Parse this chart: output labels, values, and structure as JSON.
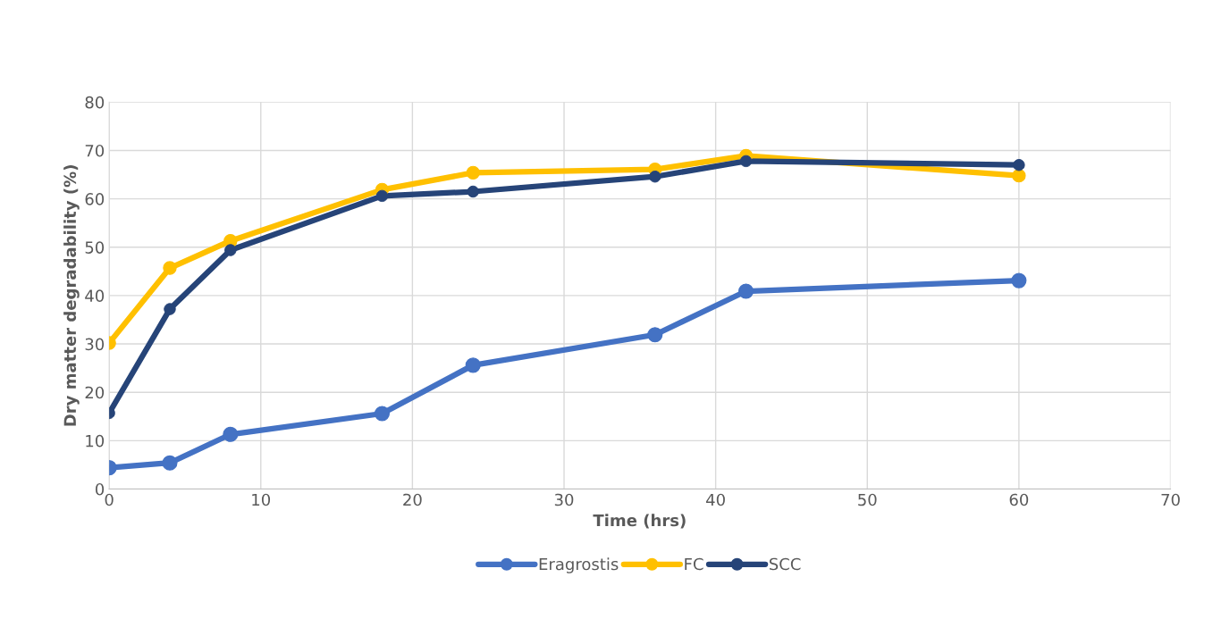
{
  "chart_data": {
    "type": "line",
    "xlabel": "Time (hrs)",
    "ylabel": "Dry matter degradability (%)",
    "x": [
      0,
      4,
      8,
      18,
      24,
      36,
      42,
      60
    ],
    "series": [
      {
        "name": "Eragrostis",
        "color": "#4472c4",
        "values": [
          4.4,
          5.4,
          11.3,
          15.6,
          25.6,
          31.9,
          40.9,
          43.1
        ]
      },
      {
        "name": "FC",
        "color": "#ffc000",
        "values": [
          30.2,
          45.7,
          51.3,
          61.9,
          65.4,
          66.1,
          68.9,
          64.8
        ]
      },
      {
        "name": "SCC",
        "color": "#264478",
        "values": [
          15.7,
          37.2,
          49.4,
          60.6,
          61.5,
          64.6,
          67.8,
          67.0
        ]
      }
    ],
    "xlim": [
      0,
      70
    ],
    "xticks": [
      0,
      10,
      20,
      30,
      40,
      50,
      60,
      70
    ],
    "ylim": [
      0,
      80
    ],
    "yticks": [
      0,
      10,
      20,
      30,
      40,
      50,
      60,
      70,
      80
    ],
    "grid": true,
    "legend": "bottom",
    "marker": "circle",
    "line_style": "solid"
  }
}
